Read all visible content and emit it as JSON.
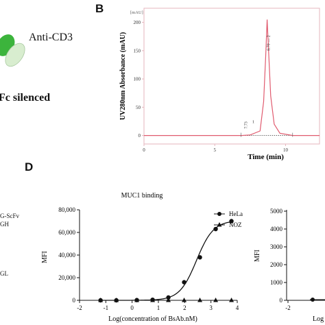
{
  "panels": {
    "b": "B",
    "d": "D"
  },
  "schematic": {
    "anti_cd3": "Anti-CD3",
    "fc_silenced": "Fc silenced",
    "left_labels": [
      "G-ScFv",
      "GH",
      "GL"
    ]
  },
  "colors": {
    "hplc_line": "#e05a6e",
    "hplc_frame": "#e5b5bd",
    "green": "#3cb43c",
    "pale_green": "#d8edcf"
  },
  "chart_data": [
    {
      "type": "line",
      "ylabel": "UV280nm Absorbance (mAU)",
      "xlabel": "Time (min)",
      "unit_label": "[mAU]",
      "xlim": [
        0,
        12.4
      ],
      "ylim": [
        -15,
        225
      ],
      "xticks": [
        0,
        5,
        10
      ],
      "yticks": [
        0,
        50,
        100,
        150,
        200
      ],
      "series": [
        {
          "x": [
            0,
            6.9,
            7.5,
            8.2,
            8.45,
            8.6,
            8.7,
            8.8,
            8.95,
            9.2,
            9.6,
            10.5,
            12.4
          ],
          "y": [
            0,
            0,
            1,
            8,
            60,
            140,
            205,
            150,
            70,
            20,
            4,
            0,
            0
          ]
        }
      ],
      "annotations": [
        {
          "x": 7.3,
          "text": "7.73"
        },
        {
          "x": 7.5,
          "text": "1"
        },
        {
          "x": 8.7,
          "text": "8.70 — 2"
        }
      ]
    },
    {
      "type": "line",
      "title": "MUC1 binding",
      "xlabel": "Log(concentration of BsAb.nM)",
      "ylabel": "MFI",
      "xlim": [
        -2,
        4
      ],
      "ylim": [
        0,
        80000
      ],
      "xticks": [
        -2,
        -1,
        0,
        1,
        2,
        3,
        4
      ],
      "yticks": [
        0,
        20000,
        40000,
        60000,
        80000
      ],
      "ytick_labels": [
        "0",
        "20,000",
        "40,000",
        "60,000",
        "80,000"
      ],
      "series": [
        {
          "name": "HeLa",
          "marker": "circle",
          "x": [
            -1.2,
            -0.6,
            0.18,
            0.78,
            1.38,
            1.98,
            2.58,
            3.18,
            3.78
          ],
          "y": [
            0,
            0,
            200,
            500,
            2500,
            16000,
            38000,
            63000,
            70000
          ]
        },
        {
          "name": "NOZ",
          "marker": "triangle",
          "x": [
            -1.2,
            -0.6,
            0.18,
            0.78,
            1.38,
            1.98,
            2.58,
            3.18,
            3.78
          ],
          "y": [
            0,
            0,
            0,
            0,
            0,
            0,
            0,
            0,
            0
          ]
        }
      ]
    },
    {
      "type": "line",
      "ylabel": "MFI",
      "xlabel": "Log",
      "yticks": [
        0,
        1000,
        2000,
        3000,
        4000,
        5000
      ],
      "ytick_labels": [
        "0",
        "1000",
        "2000",
        "3000",
        "4000",
        "5000"
      ],
      "xticks": [
        -2
      ],
      "ylim": [
        0,
        5000
      ]
    }
  ]
}
